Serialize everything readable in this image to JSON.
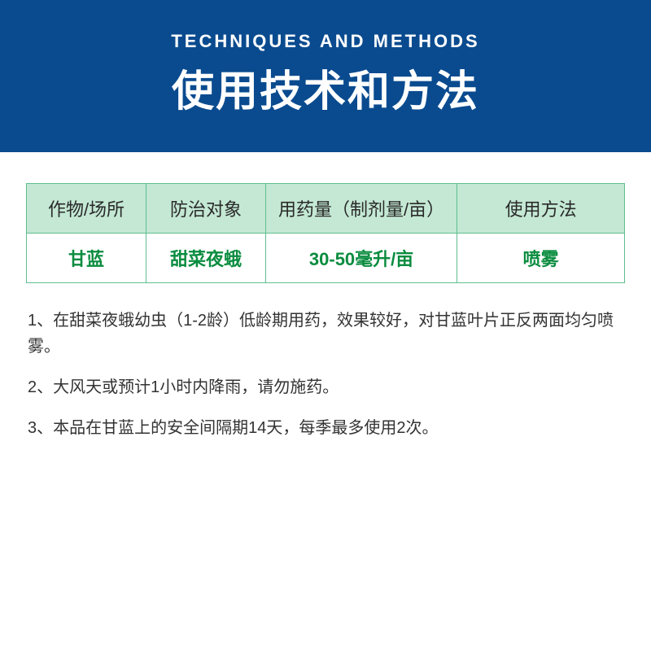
{
  "header": {
    "subtitle": "TECHNIQUES AND METHODS",
    "title": "使用技术和方法",
    "bg_color": "#0a4b8f",
    "text_color": "#ffffff",
    "subtitle_fontsize": 22,
    "title_fontsize": 52
  },
  "table": {
    "border_color": "#5fbf8f",
    "header_bg": "#c4e8d4",
    "header_text_color": "#2a2a2a",
    "cell_bg": "#ffffff",
    "cell_text_color": "#0a8c3f",
    "header_fontsize": 22,
    "cell_fontsize": 22,
    "columns": [
      {
        "label": "作物/场所",
        "width": "20%"
      },
      {
        "label": "防治对象",
        "width": "20%"
      },
      {
        "label": "用药量（制剂量/亩）",
        "width": "32%"
      },
      {
        "label": "使用方法",
        "width": "28%"
      }
    ],
    "rows": [
      [
        "甘蓝",
        "甜菜夜蛾",
        "30-50毫升/亩",
        "喷雾"
      ]
    ]
  },
  "notes": {
    "text_color": "#333333",
    "fontsize": 20,
    "items": [
      "1、在甜菜夜蛾幼虫（1-2龄）低龄期用药，效果较好，对甘蓝叶片正反两面均匀喷雾。",
      "2、大风天或预计1小时内降雨，请勿施药。",
      "3、本品在甘蓝上的安全间隔期14天，每季最多使用2次。"
    ]
  }
}
